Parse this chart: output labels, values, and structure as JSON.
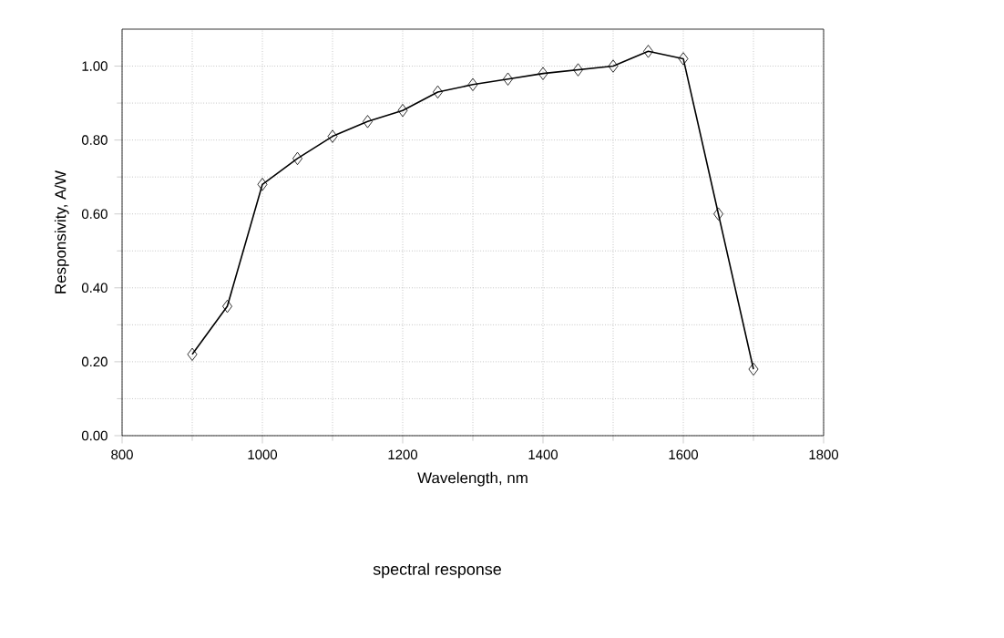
{
  "chart_data": {
    "type": "line",
    "xlabel": "Wavelength, nm",
    "ylabel": "Responsivity, A/W",
    "x": [
      900,
      950,
      1000,
      1050,
      1100,
      1150,
      1200,
      1250,
      1300,
      1350,
      1400,
      1450,
      1500,
      1550,
      1600,
      1650,
      1700
    ],
    "series": [
      {
        "color": "#000000",
        "values": [
          0.22,
          0.35,
          0.68,
          0.75,
          0.81,
          0.85,
          0.88,
          0.93,
          0.95,
          0.965,
          0.98,
          0.99,
          1.0,
          1.04,
          1.02,
          0.6,
          0.18
        ]
      }
    ],
    "xlim": [
      800,
      1800
    ],
    "xticks": [
      800,
      1000,
      1200,
      1400,
      1600,
      1800
    ],
    "ylim": [
      0,
      1.1
    ],
    "yticks": [
      {
        "value": 0,
        "label": "0.00"
      },
      {
        "value": 0.2,
        "label": "0.20"
      },
      {
        "value": 0.4,
        "label": "0.40"
      },
      {
        "value": 0.6,
        "label": "0.60"
      },
      {
        "value": 0.8,
        "label": "0.80"
      },
      {
        "value": 1.0,
        "label": "1.00"
      }
    ],
    "grid": true,
    "marker": "diamond",
    "line_style": "solid",
    "annotations": [
      "spectral response"
    ]
  }
}
